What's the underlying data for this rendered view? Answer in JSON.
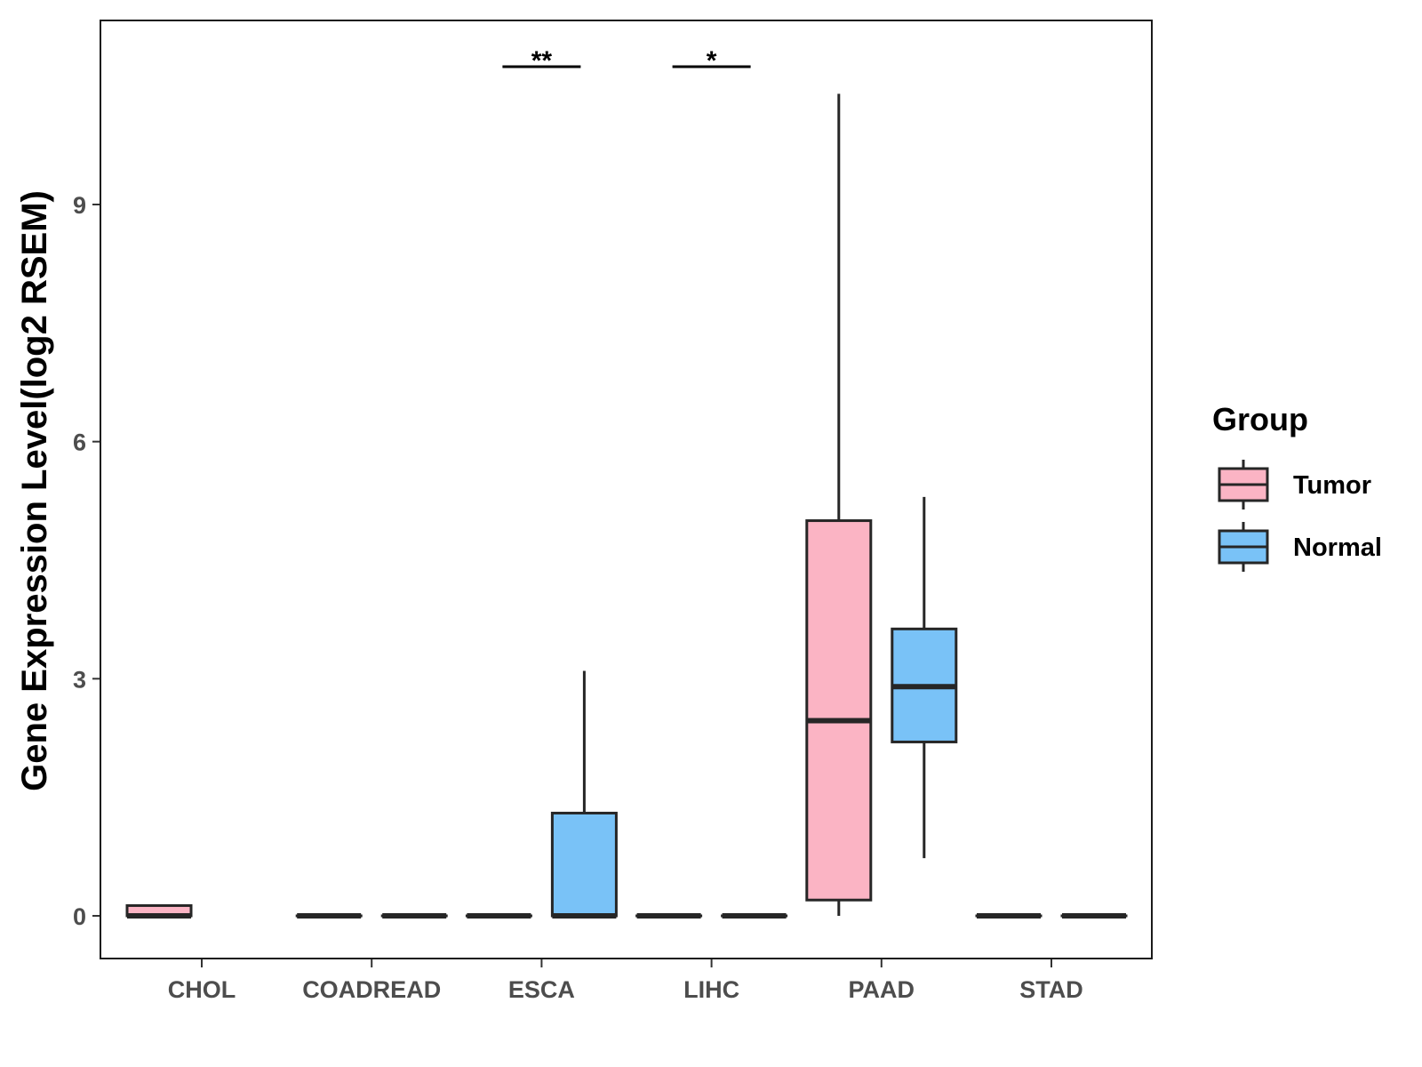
{
  "chart_data": {
    "type": "box",
    "ylabel": "Gene Expression Level(log2 RSEM)",
    "xlabel": "",
    "y_ticks": [
      0,
      3,
      6,
      9
    ],
    "ylim": [
      -0.55,
      11.3
    ],
    "categories": [
      "CHOL",
      "COADREAD",
      "ESCA",
      "LIHC",
      "PAAD",
      "STAD"
    ],
    "legend": {
      "title": "Group",
      "position": "right"
    },
    "series": [
      {
        "name": "Tumor",
        "color": "#FBB4C4",
        "boxes": [
          {
            "category": "CHOL",
            "min": 0,
            "q1": 0,
            "median": 0,
            "q3": 0.13,
            "max": 0.13
          },
          {
            "category": "COADREAD",
            "min": 0,
            "q1": 0,
            "median": 0,
            "q3": 0,
            "max": 0
          },
          {
            "category": "ESCA",
            "min": 0,
            "q1": 0,
            "median": 0,
            "q3": 0,
            "max": 0
          },
          {
            "category": "LIHC",
            "min": 0,
            "q1": 0,
            "median": 0,
            "q3": 0,
            "max": 0
          },
          {
            "category": "PAAD",
            "min": 0,
            "q1": 0.2,
            "median": 2.47,
            "q3": 5.0,
            "max": 10.4
          },
          {
            "category": "STAD",
            "min": 0,
            "q1": 0,
            "median": 0,
            "q3": 0,
            "max": 0
          }
        ]
      },
      {
        "name": "Normal",
        "color": "#79C2F7",
        "boxes": [
          {
            "category": "CHOL",
            "min": null,
            "q1": null,
            "median": null,
            "q3": null,
            "max": null
          },
          {
            "category": "COADREAD",
            "min": 0,
            "q1": 0,
            "median": 0,
            "q3": 0,
            "max": 0
          },
          {
            "category": "ESCA",
            "min": 0,
            "q1": 0,
            "median": 0,
            "q3": 1.3,
            "max": 3.1
          },
          {
            "category": "LIHC",
            "min": 0,
            "q1": 0,
            "median": 0,
            "q3": 0,
            "max": 0
          },
          {
            "category": "PAAD",
            "min": 0.73,
            "q1": 2.2,
            "median": 2.9,
            "q3": 3.63,
            "max": 5.3
          },
          {
            "category": "STAD",
            "min": 0,
            "q1": 0,
            "median": 0,
            "q3": 0,
            "max": 0
          }
        ]
      }
    ],
    "significance": [
      {
        "category": "ESCA",
        "label": "**"
      },
      {
        "category": "LIHC",
        "label": "*"
      }
    ]
  }
}
